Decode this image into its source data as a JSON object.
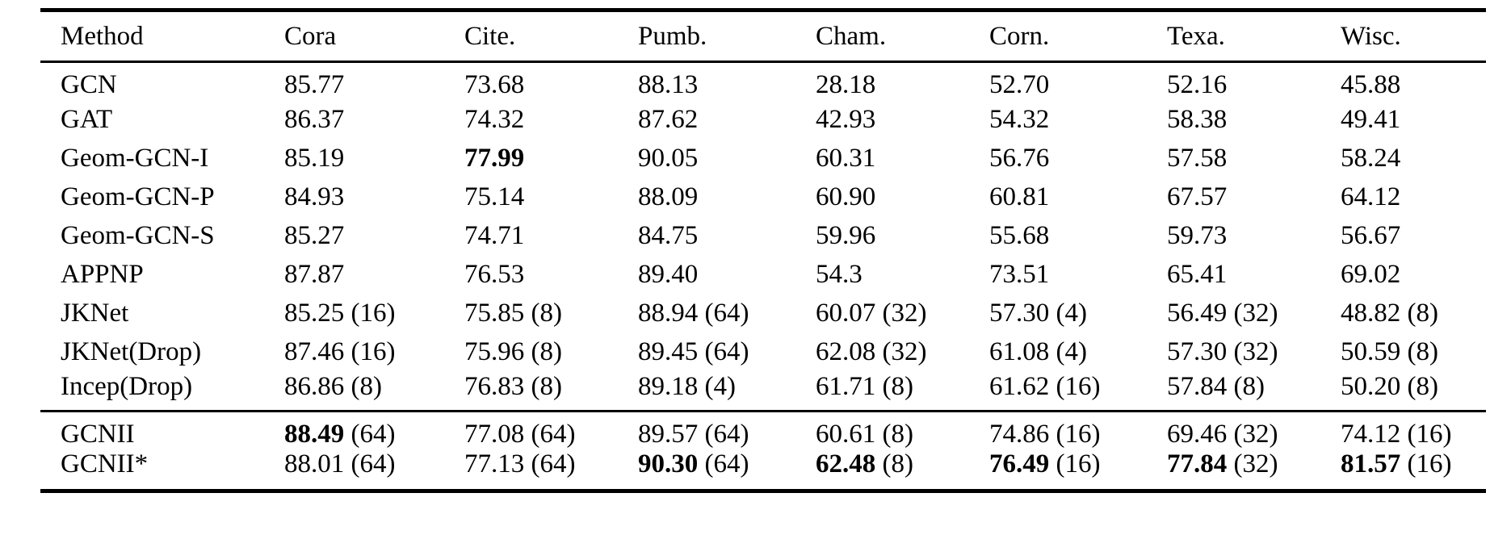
{
  "table": {
    "columns": [
      "Method",
      "Cora",
      "Cite.",
      "Pumb.",
      "Cham.",
      "Corn.",
      "Texa.",
      "Wisc."
    ],
    "groups": [
      {
        "name": "baseline-methods",
        "rows": [
          {
            "method": "GCN",
            "cells": [
              {
                "v": "85.77",
                "l": "",
                "b": false
              },
              {
                "v": "73.68",
                "l": "",
                "b": false
              },
              {
                "v": "88.13",
                "l": "",
                "b": false
              },
              {
                "v": "28.18",
                "l": "",
                "b": false
              },
              {
                "v": "52.70",
                "l": "",
                "b": false
              },
              {
                "v": "52.16",
                "l": "",
                "b": false
              },
              {
                "v": "45.88",
                "l": "",
                "b": false
              }
            ]
          },
          {
            "method": "GAT",
            "cells": [
              {
                "v": "86.37",
                "l": "",
                "b": false
              },
              {
                "v": "74.32",
                "l": "",
                "b": false
              },
              {
                "v": "87.62",
                "l": "",
                "b": false
              },
              {
                "v": "42.93",
                "l": "",
                "b": false
              },
              {
                "v": "54.32",
                "l": "",
                "b": false
              },
              {
                "v": "58.38",
                "l": "",
                "b": false
              },
              {
                "v": "49.41",
                "l": "",
                "b": false
              }
            ]
          },
          {
            "method": "Geom-GCN-I",
            "cells": [
              {
                "v": "85.19",
                "l": "",
                "b": false
              },
              {
                "v": "77.99",
                "l": "",
                "b": true
              },
              {
                "v": "90.05",
                "l": "",
                "b": false
              },
              {
                "v": "60.31",
                "l": "",
                "b": false
              },
              {
                "v": "56.76",
                "l": "",
                "b": false
              },
              {
                "v": "57.58",
                "l": "",
                "b": false
              },
              {
                "v": "58.24",
                "l": "",
                "b": false
              }
            ]
          },
          {
            "method": "Geom-GCN-P",
            "cells": [
              {
                "v": "84.93",
                "l": "",
                "b": false
              },
              {
                "v": "75.14",
                "l": "",
                "b": false
              },
              {
                "v": "88.09",
                "l": "",
                "b": false
              },
              {
                "v": "60.90",
                "l": "",
                "b": false
              },
              {
                "v": "60.81",
                "l": "",
                "b": false
              },
              {
                "v": "67.57",
                "l": "",
                "b": false
              },
              {
                "v": "64.12",
                "l": "",
                "b": false
              }
            ]
          },
          {
            "method": "Geom-GCN-S",
            "cells": [
              {
                "v": "85.27",
                "l": "",
                "b": false
              },
              {
                "v": "74.71",
                "l": "",
                "b": false
              },
              {
                "v": "84.75",
                "l": "",
                "b": false
              },
              {
                "v": "59.96",
                "l": "",
                "b": false
              },
              {
                "v": "55.68",
                "l": "",
                "b": false
              },
              {
                "v": "59.73",
                "l": "",
                "b": false
              },
              {
                "v": "56.67",
                "l": "",
                "b": false
              }
            ]
          },
          {
            "method": "APPNP",
            "cells": [
              {
                "v": "87.87",
                "l": "",
                "b": false
              },
              {
                "v": "76.53",
                "l": "",
                "b": false
              },
              {
                "v": "89.40",
                "l": "",
                "b": false
              },
              {
                "v": "54.3",
                "l": "",
                "b": false
              },
              {
                "v": "73.51",
                "l": "",
                "b": false
              },
              {
                "v": "65.41",
                "l": "",
                "b": false
              },
              {
                "v": "69.02",
                "l": "",
                "b": false
              }
            ]
          },
          {
            "method": "JKNet",
            "cells": [
              {
                "v": "85.25",
                "l": "(16)",
                "b": false
              },
              {
                "v": "75.85",
                "l": "(8)",
                "b": false
              },
              {
                "v": "88.94",
                "l": "(64)",
                "b": false
              },
              {
                "v": "60.07",
                "l": "(32)",
                "b": false
              },
              {
                "v": "57.30",
                "l": "(4)",
                "b": false
              },
              {
                "v": "56.49",
                "l": "(32)",
                "b": false
              },
              {
                "v": "48.82",
                "l": "(8)",
                "b": false
              }
            ]
          },
          {
            "method": "JKNet(Drop)",
            "cells": [
              {
                "v": "87.46",
                "l": "(16)",
                "b": false
              },
              {
                "v": "75.96",
                "l": "(8)",
                "b": false
              },
              {
                "v": "89.45",
                "l": "(64)",
                "b": false
              },
              {
                "v": "62.08",
                "l": "(32)",
                "b": false
              },
              {
                "v": "61.08",
                "l": "(4)",
                "b": false
              },
              {
                "v": "57.30",
                "l": "(32)",
                "b": false
              },
              {
                "v": "50.59",
                "l": "(8)",
                "b": false
              }
            ]
          },
          {
            "method": "Incep(Drop)",
            "cells": [
              {
                "v": "86.86",
                "l": "(8)",
                "b": false
              },
              {
                "v": "76.83",
                "l": "(8)",
                "b": false
              },
              {
                "v": "89.18",
                "l": "(4)",
                "b": false
              },
              {
                "v": "61.71",
                "l": "(8)",
                "b": false
              },
              {
                "v": "61.62",
                "l": "(16)",
                "b": false
              },
              {
                "v": "57.84",
                "l": "(8)",
                "b": false
              },
              {
                "v": "50.20",
                "l": "(8)",
                "b": false
              }
            ]
          }
        ]
      },
      {
        "name": "gcnii",
        "rows": [
          {
            "method": "GCNII",
            "cells": [
              {
                "v": "88.49",
                "l": "(64)",
                "b": true
              },
              {
                "v": "77.08",
                "l": "(64)",
                "b": false
              },
              {
                "v": "89.57",
                "l": "(64)",
                "b": false
              },
              {
                "v": "60.61",
                "l": "(8)",
                "b": false
              },
              {
                "v": "74.86",
                "l": "(16)",
                "b": false
              },
              {
                "v": "69.46",
                "l": "(32)",
                "b": false
              },
              {
                "v": "74.12",
                "l": "(16)",
                "b": false
              }
            ]
          },
          {
            "method": "GCNII*",
            "cells": [
              {
                "v": "88.01",
                "l": "(64)",
                "b": false
              },
              {
                "v": "77.13",
                "l": "(64)",
                "b": false
              },
              {
                "v": "90.30",
                "l": "(64)",
                "b": true
              },
              {
                "v": "62.48",
                "l": "(8)",
                "b": true
              },
              {
                "v": "76.49",
                "l": "(16)",
                "b": true
              },
              {
                "v": "77.84",
                "l": "(32)",
                "b": true
              },
              {
                "v": "81.57",
                "l": "(16)",
                "b": true
              }
            ]
          }
        ]
      }
    ]
  }
}
